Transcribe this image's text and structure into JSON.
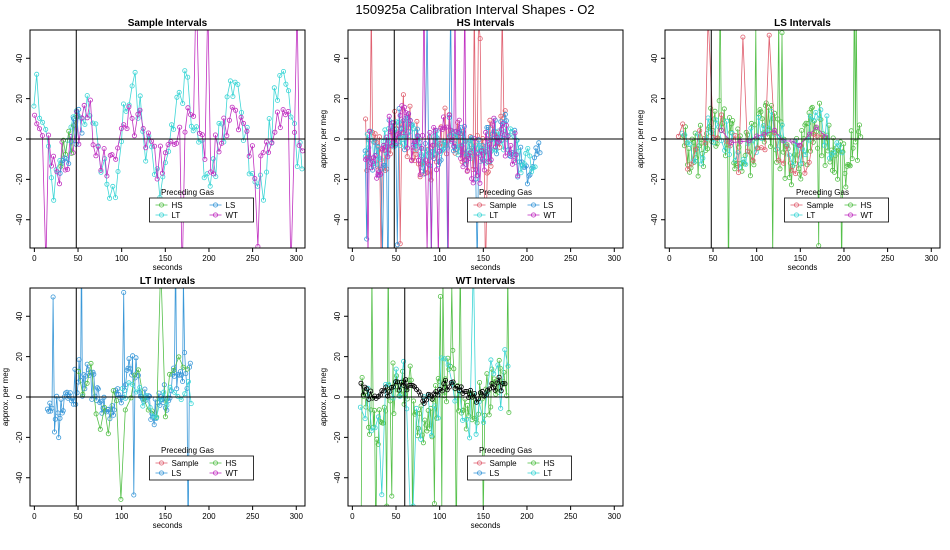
{
  "figure": {
    "title": "150925a   Calibration Interval Shapes - O2"
  },
  "colors": {
    "Sample": "#e06070",
    "HS": "#55c04a",
    "LS": "#3a98d8",
    "LT": "#3dd6d6",
    "WT": "#c030c0",
    "Self": "#000000"
  },
  "chart_data": [
    {
      "type": "scatter",
      "title": "Sample Intervals",
      "xlabel": "seconds",
      "ylabel": "",
      "xlim": [
        -5,
        310
      ],
      "ylim": [
        -54,
        54
      ],
      "xticks": [
        0,
        50,
        100,
        150,
        200,
        250,
        300
      ],
      "yticks": [
        -40,
        -20,
        0,
        20,
        40
      ],
      "vline": 48,
      "hline": 0,
      "legend": {
        "title": "Preceding Gas",
        "entries": [
          "HS",
          "LS",
          "LT",
          "WT"
        ],
        "position": "bottom-center"
      },
      "series": [
        {
          "name": "LT",
          "gen": {
            "x0": 0,
            "x1": 310,
            "step": 3.2,
            "amp": 28,
            "noise": 12,
            "trend": 0,
            "seed": 11,
            "lines": true,
            "clipy": true
          }
        },
        {
          "name": "WT",
          "gen": {
            "x0": 0,
            "x1": 310,
            "step": 3.2,
            "amp": 14,
            "noise": 10,
            "trend": 0,
            "seed": 23,
            "lines": true,
            "spikes": true
          }
        },
        {
          "name": "HS",
          "gen": {
            "x0": 30,
            "x1": 50,
            "step": 3,
            "amp": 10,
            "noise": 8,
            "trend": 0,
            "seed": 31,
            "lines": true
          }
        },
        {
          "name": "LS",
          "gen": {
            "x0": 30,
            "x1": 55,
            "step": 3,
            "amp": 12,
            "noise": 10,
            "trend": 0,
            "seed": 37,
            "lines": true
          }
        }
      ]
    },
    {
      "type": "scatter",
      "title": "HS Intervals",
      "xlabel": "seconds",
      "ylabel": "approx. per meg",
      "xlim": [
        -5,
        310
      ],
      "ylim": [
        -54,
        54
      ],
      "xticks": [
        0,
        50,
        100,
        150,
        200,
        250,
        300
      ],
      "yticks": [
        -40,
        -20,
        0,
        20,
        40
      ],
      "vline": 48,
      "hline": 0,
      "legend": {
        "title": "Preceding Gas",
        "entries": [
          "Sample",
          "LS",
          "LT",
          "WT"
        ],
        "position": "bottom-center"
      },
      "series": [
        {
          "name": "Sample",
          "gen": {
            "x0": 15,
            "x1": 175,
            "step": 1.6,
            "amp": 10,
            "noise": 14,
            "trend": -1,
            "seed": 41,
            "lines": true,
            "spikes": true
          }
        },
        {
          "name": "LS",
          "gen": {
            "x0": 15,
            "x1": 215,
            "step": 1.6,
            "amp": 9,
            "noise": 11,
            "trend": -1,
            "seed": 43,
            "lines": true,
            "spikes": true
          }
        },
        {
          "name": "LT",
          "gen": {
            "x0": 15,
            "x1": 210,
            "step": 2.0,
            "amp": 6,
            "noise": 8,
            "trend": -1,
            "seed": 47,
            "lines": true
          }
        },
        {
          "name": "WT",
          "gen": {
            "x0": 15,
            "x1": 190,
            "step": 1.6,
            "amp": 9,
            "noise": 12,
            "trend": -1,
            "seed": 53,
            "lines": true,
            "spikes": true
          }
        }
      ]
    },
    {
      "type": "scatter",
      "title": "LS Intervals",
      "xlabel": "seconds",
      "ylabel": "approx. per meg",
      "xlim": [
        -5,
        310
      ],
      "ylim": [
        -54,
        54
      ],
      "xticks": [
        0,
        50,
        100,
        150,
        200,
        250,
        300
      ],
      "yticks": [
        -40,
        -20,
        0,
        20,
        40
      ],
      "vline": 48,
      "hline": 0,
      "legend": {
        "title": "Preceding Gas",
        "entries": [
          "Sample",
          "HS",
          "LT",
          "WT"
        ],
        "position": "bottom-center"
      },
      "series": [
        {
          "name": "HS",
          "gen": {
            "x0": 15,
            "x1": 220,
            "step": 1.2,
            "amp": 10,
            "noise": 13,
            "trend": -1,
            "seed": 61,
            "lines": true,
            "spikes": true
          }
        },
        {
          "name": "LT",
          "gen": {
            "x0": 15,
            "x1": 200,
            "step": 3.0,
            "amp": 8,
            "noise": 10,
            "trend": 0,
            "seed": 67,
            "lines": true
          }
        },
        {
          "name": "Sample",
          "gen": {
            "x0": 10,
            "x1": 175,
            "step": 5.0,
            "amp": 8,
            "noise": 10,
            "trend": -2,
            "seed": 71,
            "lines": true,
            "spikes": true
          }
        },
        {
          "name": "WT",
          "gen": {
            "x0": 60,
            "x1": 180,
            "step": 10,
            "amp": 3,
            "noise": 3,
            "trend": 0,
            "seed": 73,
            "lines": true
          }
        }
      ]
    },
    {
      "type": "scatter",
      "title": "LT Intervals",
      "xlabel": "seconds",
      "ylabel": "approx. per meg",
      "xlim": [
        -5,
        310
      ],
      "ylim": [
        -54,
        54
      ],
      "xticks": [
        0,
        50,
        100,
        150,
        200,
        250,
        300
      ],
      "yticks": [
        -40,
        -20,
        0,
        20,
        40
      ],
      "vline": 48,
      "hline": 0,
      "legend": {
        "title": "Preceding Gas",
        "entries": [
          "Sample",
          "HS",
          "LS",
          "WT"
        ],
        "position": "bottom-center"
      },
      "series": [
        {
          "name": "LS",
          "gen": {
            "x0": 15,
            "x1": 180,
            "step": 1.3,
            "amp": 12,
            "noise": 9,
            "trend": 1,
            "seed": 81,
            "lines": true,
            "spikes": true
          }
        },
        {
          "name": "HS",
          "gen": {
            "x0": 50,
            "x1": 175,
            "step": 5.0,
            "amp": 12,
            "noise": 12,
            "trend": 0,
            "seed": 83,
            "lines": true,
            "spikes": true
          }
        },
        {
          "name": "LT",
          "gen": {
            "x0": 100,
            "x1": 180,
            "step": 4.0,
            "amp": 6,
            "noise": 6,
            "trend": 0,
            "seed": 89,
            "lines": true
          }
        }
      ]
    },
    {
      "type": "scatter",
      "title": "WT Intervals",
      "xlabel": "seconds",
      "ylabel": "approx. per meg",
      "xlim": [
        -5,
        310
      ],
      "ylim": [
        -54,
        54
      ],
      "xticks": [
        0,
        50,
        100,
        150,
        200,
        250,
        300
      ],
      "yticks": [
        -40,
        -20,
        0,
        20,
        40
      ],
      "vline": 60,
      "hline": 0,
      "legend": {
        "title": "Preceding Gas",
        "entries": [
          "Sample",
          "HS",
          "LS",
          "LT"
        ],
        "position": "bottom-center"
      },
      "series": [
        {
          "name": "HS",
          "gen": {
            "x0": 10,
            "x1": 180,
            "step": 1.4,
            "amp": 12,
            "noise": 14,
            "trend": 0,
            "seed": 91,
            "lines": true,
            "spikes": true
          }
        },
        {
          "name": "LT",
          "gen": {
            "x0": 10,
            "x1": 180,
            "step": 4.0,
            "amp": 12,
            "noise": 14,
            "trend": 0,
            "seed": 97,
            "lines": true,
            "spikes": true
          }
        },
        {
          "name": "Self",
          "gen": {
            "x0": 10,
            "x1": 175,
            "step": 2.2,
            "amp": 4,
            "noise": 3,
            "trend": 0,
            "seed": 101,
            "lines": true,
            "offset": 3
          }
        }
      ]
    }
  ]
}
